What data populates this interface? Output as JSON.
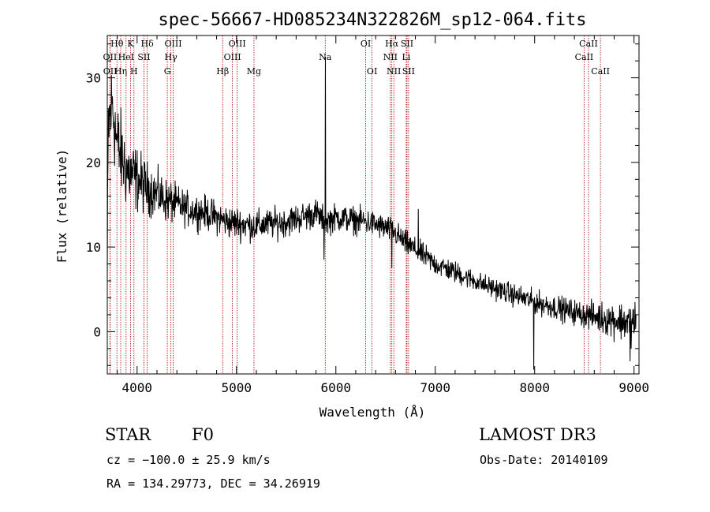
{
  "chart_data": {
    "type": "line",
    "title": "spec-56667-HD085234N322826M_sp12-064.fits",
    "xlabel": "Wavelength (Å)",
    "ylabel": "Flux (relative)",
    "xlim": [
      3700,
      9050
    ],
    "ylim": [
      -5,
      35
    ],
    "xticks": [
      4000,
      5000,
      6000,
      7000,
      8000,
      9000
    ],
    "yticks": [
      0,
      10,
      20,
      30
    ],
    "spectrum_anchors": [
      {
        "x": 3700,
        "y": 5
      },
      {
        "x": 3710,
        "y": 24
      },
      {
        "x": 3750,
        "y": 27
      },
      {
        "x": 3800,
        "y": 22
      },
      {
        "x": 3900,
        "y": 19
      },
      {
        "x": 4000,
        "y": 18
      },
      {
        "x": 4100,
        "y": 17
      },
      {
        "x": 4300,
        "y": 15.5
      },
      {
        "x": 4500,
        "y": 14.5
      },
      {
        "x": 4700,
        "y": 14
      },
      {
        "x": 4900,
        "y": 13
      },
      {
        "x": 5200,
        "y": 12.5
      },
      {
        "x": 5500,
        "y": 13
      },
      {
        "x": 5800,
        "y": 14
      },
      {
        "x": 5890,
        "y": 13
      },
      {
        "x": 6000,
        "y": 13.5
      },
      {
        "x": 6300,
        "y": 13
      },
      {
        "x": 6560,
        "y": 12
      },
      {
        "x": 6700,
        "y": 10.5
      },
      {
        "x": 7000,
        "y": 8
      },
      {
        "x": 7500,
        "y": 5.5
      },
      {
        "x": 8000,
        "y": 3.5
      },
      {
        "x": 8500,
        "y": 2
      },
      {
        "x": 9000,
        "y": 1
      }
    ],
    "spectrum_features": [
      {
        "x": 5893,
        "y": 32.5,
        "note": "Na emission spike"
      },
      {
        "x": 5880,
        "y": 8.5
      },
      {
        "x": 6563,
        "y": 7.5,
        "note": "H-alpha dip"
      },
      {
        "x": 6830,
        "y": 14.5
      },
      {
        "x": 7990,
        "y": -4.5
      },
      {
        "x": 8960,
        "y": -3.5
      },
      {
        "x": 9010,
        "y": 3.5
      }
    ],
    "noise_amplitude": [
      {
        "x": 3700,
        "a": 6
      },
      {
        "x": 4100,
        "a": 3
      },
      {
        "x": 4500,
        "a": 2
      },
      {
        "x": 6500,
        "a": 1.5
      },
      {
        "x": 7500,
        "a": 1.2
      },
      {
        "x": 8500,
        "a": 1.5
      },
      {
        "x": 9000,
        "a": 2.5
      }
    ],
    "lines": [
      {
        "wl": 3727,
        "label": "OII",
        "row": 2
      },
      {
        "wl": 3729,
        "label": "OII",
        "row": 3
      },
      {
        "wl": 3797,
        "label": "Hθ",
        "row": 1
      },
      {
        "wl": 3835,
        "label": "Hη",
        "row": 3
      },
      {
        "wl": 3889,
        "label": "HeI",
        "row": 2
      },
      {
        "wl": 3934,
        "label": "K",
        "row": 1
      },
      {
        "wl": 3968,
        "label": "H",
        "row": 3
      },
      {
        "wl": 4069,
        "label": "SII",
        "row": 2
      },
      {
        "wl": 4102,
        "label": "Hδ",
        "row": 1
      },
      {
        "wl": 4304,
        "label": "G",
        "row": 3
      },
      {
        "wl": 4340,
        "label": "Hγ",
        "row": 2
      },
      {
        "wl": 4363,
        "label": "OIII",
        "row": 1
      },
      {
        "wl": 4861,
        "label": "Hβ",
        "row": 3
      },
      {
        "wl": 4959,
        "label": "OIII",
        "row": 2
      },
      {
        "wl": 5007,
        "label": "OIII",
        "row": 1
      },
      {
        "wl": 5176,
        "label": "Mg",
        "row": 3
      },
      {
        "wl": 5893,
        "label": "Na",
        "row": 2
      },
      {
        "wl": 6300,
        "label": "OI",
        "row": 1
      },
      {
        "wl": 6364,
        "label": "OI",
        "row": 3
      },
      {
        "wl": 6548,
        "label": "NII",
        "row": 2
      },
      {
        "wl": 6563,
        "label": "Hα",
        "row": 1
      },
      {
        "wl": 6583,
        "label": "NII",
        "row": 3
      },
      {
        "wl": 6708,
        "label": "Li",
        "row": 2
      },
      {
        "wl": 6716,
        "label": "SII",
        "row": 1
      },
      {
        "wl": 6731,
        "label": "SII",
        "row": 3
      },
      {
        "wl": 8498,
        "label": "CaII",
        "row": 2
      },
      {
        "wl": 8542,
        "label": "CaII",
        "row": 1
      },
      {
        "wl": 8662,
        "label": "CaII",
        "row": 3
      }
    ]
  },
  "info": {
    "class": "STAR",
    "subclass": "F0",
    "survey": "LAMOST DR3",
    "cz": "cz = −100.0 ± 25.9 km/s",
    "obs_date": "Obs-Date: 20140109",
    "radec": "RA = 134.29773, DEC =  34.26919"
  },
  "colors": {
    "spectrum": "#000000",
    "line_marker": "#b00000",
    "axes": "#000000"
  }
}
